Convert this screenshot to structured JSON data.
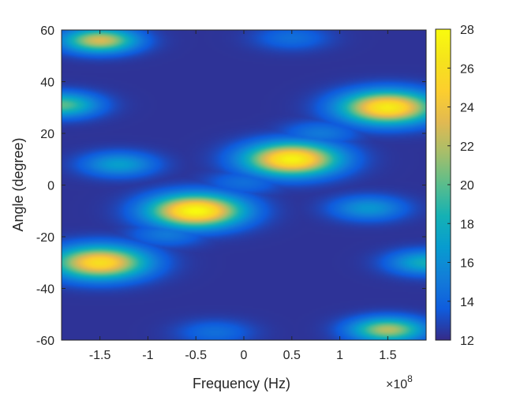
{
  "chart_data": {
    "type": "heatmap",
    "title": "",
    "xlabel": "Frequency (Hz)",
    "ylabel": "Angle (degree)",
    "x_multiplier_label": {
      "base": "×10",
      "exponent": "8"
    },
    "xlim": [
      -1.9,
      1.9
    ],
    "ylim": [
      -60,
      60
    ],
    "x_ticks": [
      -1.5,
      -1,
      -0.5,
      0,
      0.5,
      1,
      1.5
    ],
    "x_tick_labels": [
      "-1.5",
      "-1",
      "-0.5",
      "0",
      "0.5",
      "1",
      "1.5"
    ],
    "y_ticks": [
      -60,
      -40,
      -20,
      0,
      20,
      40,
      60
    ],
    "y_tick_labels": [
      "-60",
      "-40",
      "-20",
      "0",
      "20",
      "40",
      "60"
    ],
    "colorbar": {
      "range": [
        12,
        28
      ],
      "ticks": [
        12,
        14,
        16,
        18,
        20,
        22,
        24,
        26,
        28
      ],
      "tick_labels": [
        "12",
        "14",
        "16",
        "18",
        "20",
        "22",
        "24",
        "26",
        "28"
      ],
      "colormap": "parula"
    },
    "background_value": 12.3,
    "peaks": [
      {
        "frequency": -1.5,
        "angle": 56,
        "value": 23
      },
      {
        "frequency": 1.5,
        "angle": 30,
        "value": 27
      },
      {
        "frequency": 0.5,
        "angle": 10,
        "value": 27.5
      },
      {
        "frequency": -0.5,
        "angle": -10,
        "value": 28
      },
      {
        "frequency": -1.5,
        "angle": -30,
        "value": 26
      },
      {
        "frequency": 1.5,
        "angle": -56,
        "value": 22
      },
      {
        "frequency": -1.9,
        "angle": 31,
        "value": 20
      },
      {
        "frequency": -1.3,
        "angle": 8,
        "value": 17
      },
      {
        "frequency": 1.3,
        "angle": -9,
        "value": 16.5
      },
      {
        "frequency": 0.8,
        "angle": 20,
        "value": 15
      },
      {
        "frequency": -0.8,
        "angle": -19,
        "value": 15
      },
      {
        "frequency": 0.0,
        "angle": 1,
        "value": 14.5
      },
      {
        "frequency": 1.9,
        "angle": -30,
        "value": 18
      },
      {
        "frequency": 0.5,
        "angle": 57,
        "value": 14.5
      },
      {
        "frequency": -0.3,
        "angle": -57,
        "value": 14.5
      }
    ]
  }
}
